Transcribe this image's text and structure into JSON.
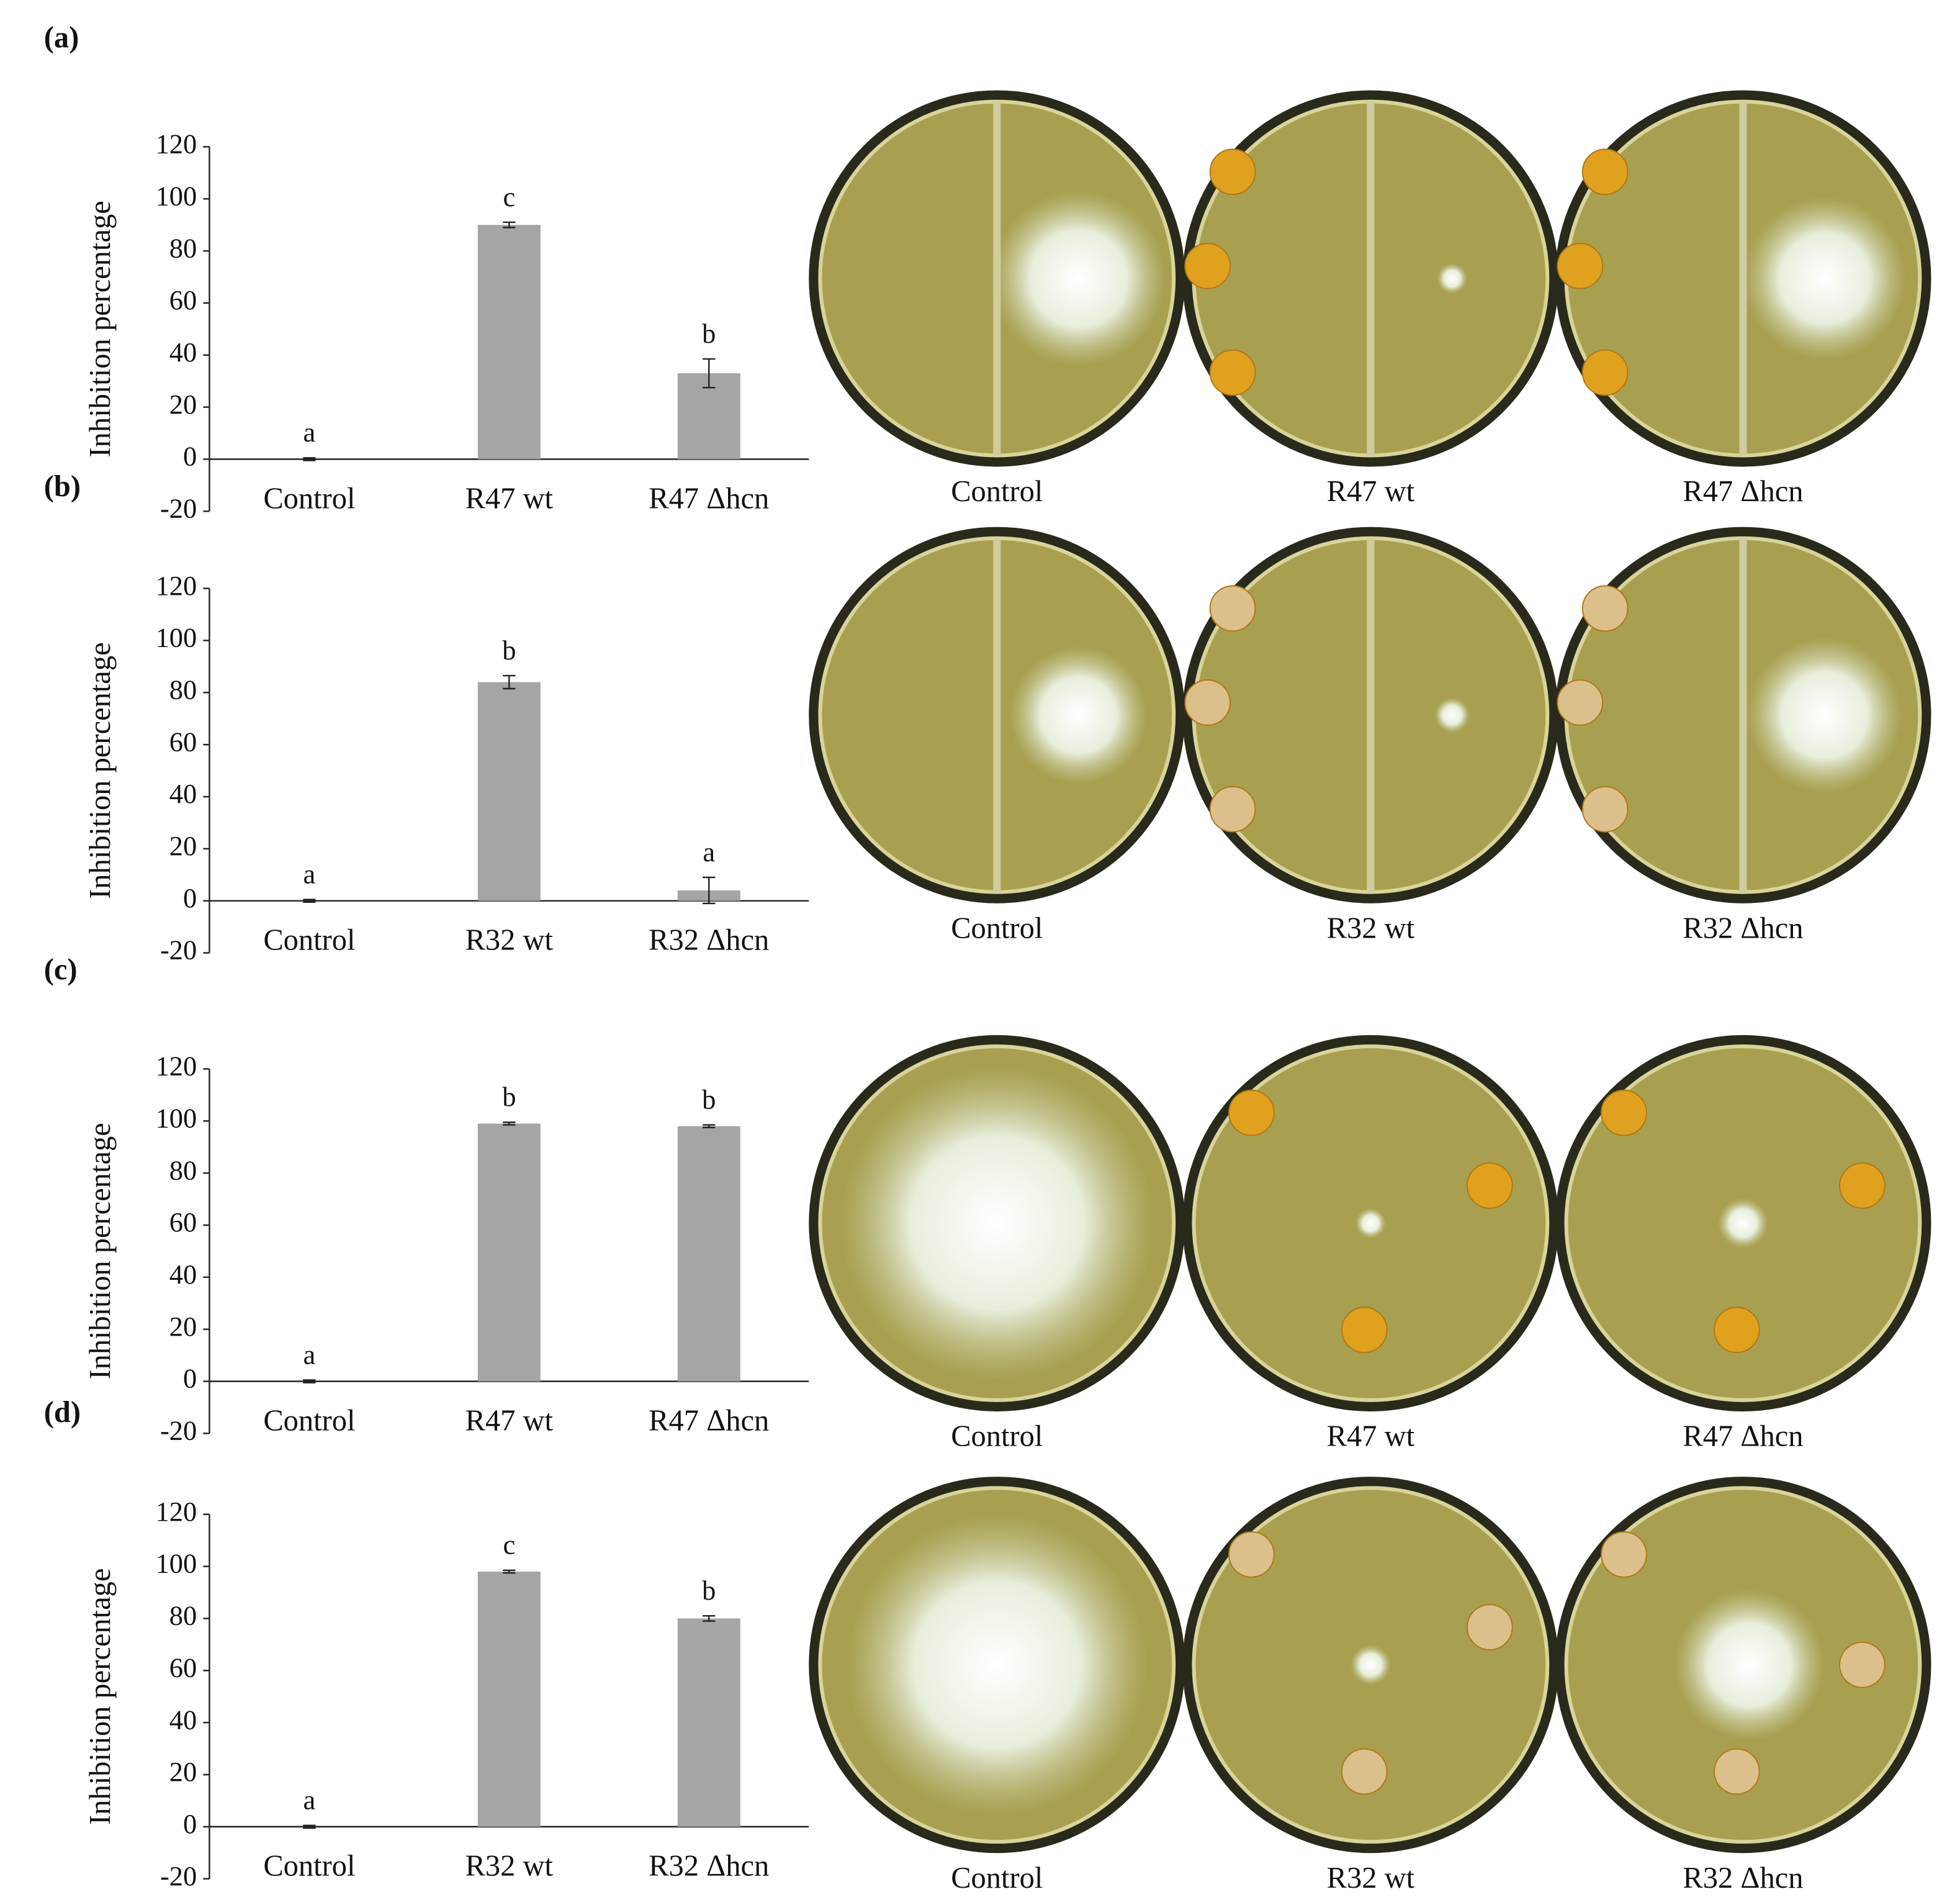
{
  "chart_data": [
    {
      "type": "bar",
      "panel_label": "(a)",
      "ylabel": "Inhibition percentage",
      "categories": [
        "Control",
        "R47 wt",
        "R47 Δhcn"
      ],
      "values": [
        0,
        90,
        33
      ],
      "errors": [
        0.5,
        1,
        5.5
      ],
      "annotations": [
        "a",
        "c",
        "b"
      ],
      "color": "#a5a5a5",
      "ylim": [
        -20,
        120
      ],
      "yticks": [
        -20,
        0,
        20,
        40,
        60,
        80,
        100,
        120
      ],
      "photo_labels": [
        "Control",
        "R47 wt",
        "R47 Δhcn"
      ]
    },
    {
      "type": "bar",
      "panel_label": "(b)",
      "ylabel": "Inhibition percentage",
      "categories": [
        "Control",
        "R32 wt",
        "R32 Δhcn"
      ],
      "values": [
        0,
        84,
        4
      ],
      "errors": [
        0.5,
        2.5,
        5
      ],
      "annotations": [
        "a",
        "b",
        "a"
      ],
      "color": "#a5a5a5",
      "ylim": [
        -20,
        120
      ],
      "yticks": [
        -20,
        0,
        20,
        40,
        60,
        80,
        100,
        120
      ],
      "photo_labels": [
        "Control",
        "R32 wt",
        "R32 Δhcn"
      ]
    },
    {
      "type": "bar",
      "panel_label": "(c)",
      "ylabel": "Inhibition percentage",
      "categories": [
        "Control",
        "R47 wt",
        "R47 Δhcn"
      ],
      "values": [
        0,
        99,
        98
      ],
      "errors": [
        0.5,
        0.5,
        0.5
      ],
      "annotations": [
        "a",
        "b",
        "b"
      ],
      "color": "#a5a5a5",
      "ylim": [
        -20,
        120
      ],
      "yticks": [
        -20,
        0,
        20,
        40,
        60,
        80,
        100,
        120
      ],
      "photo_labels": [
        "Control",
        "R47 wt",
        "R47 Δhcn"
      ]
    },
    {
      "type": "bar",
      "panel_label": "(d)",
      "ylabel": "Inhibition percentage",
      "categories": [
        "Control",
        "R32 wt",
        "R32 Δhcn"
      ],
      "values": [
        0,
        98,
        80
      ],
      "errors": [
        0.5,
        0.5,
        1
      ],
      "annotations": [
        "a",
        "c",
        "b"
      ],
      "color": "#a5a5a5",
      "ylim": [
        -20,
        120
      ],
      "yticks": [
        -20,
        0,
        20,
        40,
        60,
        80,
        100,
        120
      ],
      "photo_labels": [
        "Control",
        "R32 wt",
        "R32 Δhcn"
      ]
    }
  ]
}
